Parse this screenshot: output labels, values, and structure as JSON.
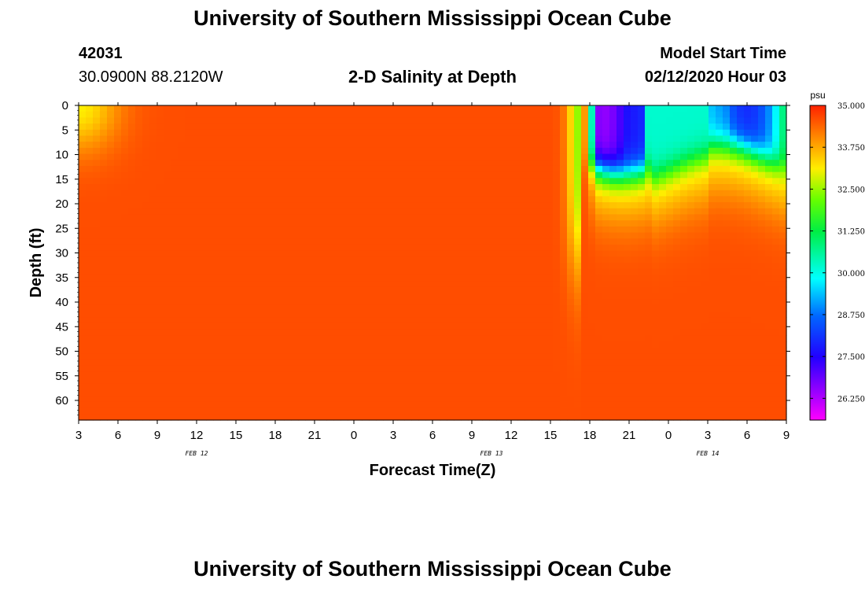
{
  "page": {
    "title_top": "University of Southern Mississippi Ocean Cube",
    "title_bottom": "University of Southern Mississippi Ocean Cube"
  },
  "header": {
    "station_id": "42031",
    "location": "30.0900N 88.2120W",
    "plot_title": "2-D Salinity at Depth",
    "start_label": "Model Start Time",
    "start_value": "02/12/2020 Hour 03"
  },
  "chart_data": {
    "type": "heatmap",
    "title": "2-D Salinity at Depth",
    "xlabel": "Forecast Time(Z)",
    "ylabel": "Depth (ft)",
    "x_tick_labels": [
      "3",
      "6",
      "9",
      "12",
      "15",
      "18",
      "21",
      "0",
      "3",
      "6",
      "9",
      "12",
      "15",
      "18",
      "21",
      "0",
      "3",
      "6",
      "9"
    ],
    "x_range_hours_since_start": [
      0,
      54
    ],
    "date_labels": [
      {
        "text": "FEB 12",
        "hour": 9
      },
      {
        "text": "FEB 13",
        "hour": 31.5
      },
      {
        "text": "FEB 14",
        "hour": 48
      }
    ],
    "y_ticks": [
      0,
      5,
      10,
      15,
      20,
      25,
      30,
      35,
      40,
      45,
      50,
      55,
      60
    ],
    "ylim": [
      0,
      64
    ],
    "colorbar": {
      "unit": "psu",
      "min": 25.6,
      "max": 35.0,
      "tick_values": [
        35.0,
        33.75,
        32.5,
        31.25,
        30.0,
        28.75,
        27.5,
        26.25
      ],
      "tick_labels": [
        "35.000",
        "33.750",
        "32.500",
        "31.250",
        "30.000",
        "28.750",
        "27.500",
        "26.250"
      ]
    },
    "surface_freshwater_events": [
      {
        "hour": 40,
        "min_psu": 26.5
      },
      {
        "hour": 51,
        "min_psu": 28.0
      }
    ],
    "background_salinity_psu": 34.6
  }
}
